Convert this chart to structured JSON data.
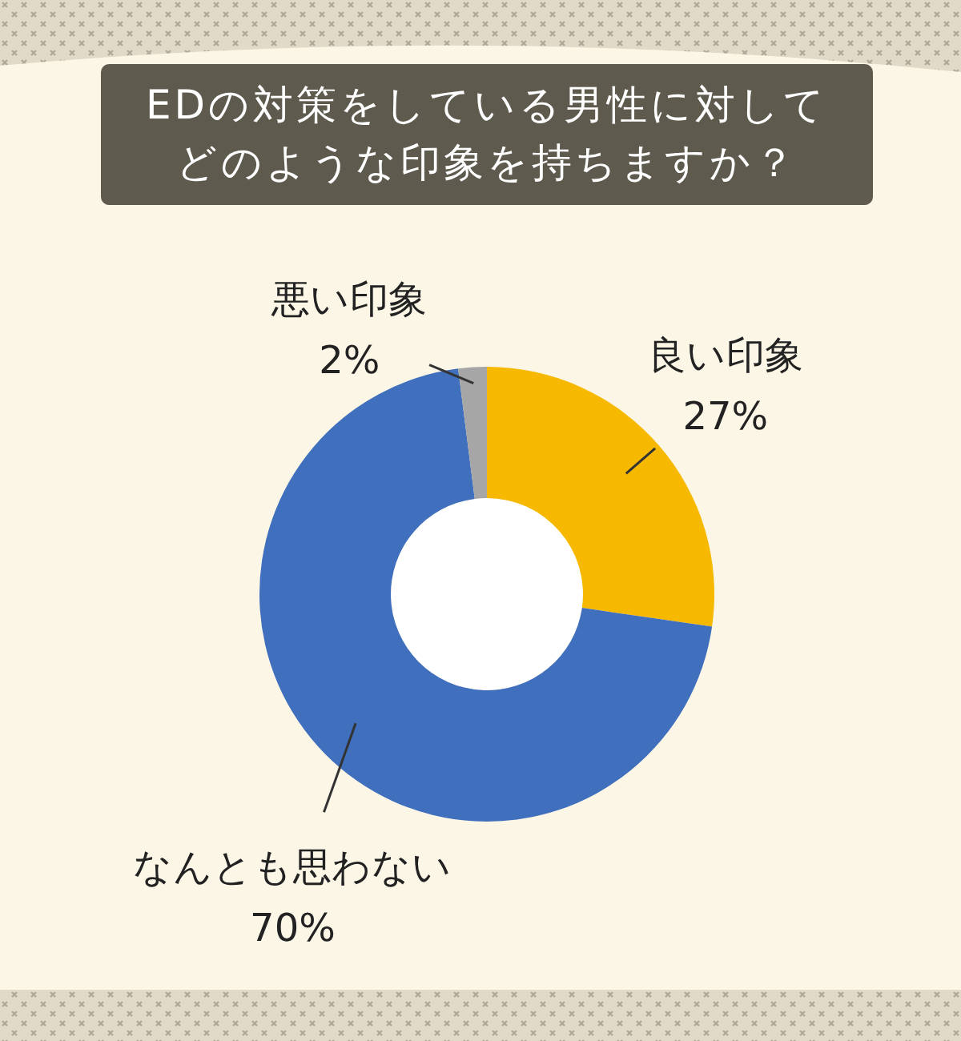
{
  "chart_data": {
    "type": "donut",
    "title": "EDの対策をしている男性に対してどのような印象を持ちますか？",
    "categories": [
      "良い印象",
      "なんとも思わない",
      "悪い印象"
    ],
    "values": [
      27,
      70,
      2
    ],
    "colors": [
      "#f6b900",
      "#3f6fbd",
      "#a6a6a6"
    ],
    "value_labels": [
      "27%",
      "70%",
      "2%"
    ]
  }
}
